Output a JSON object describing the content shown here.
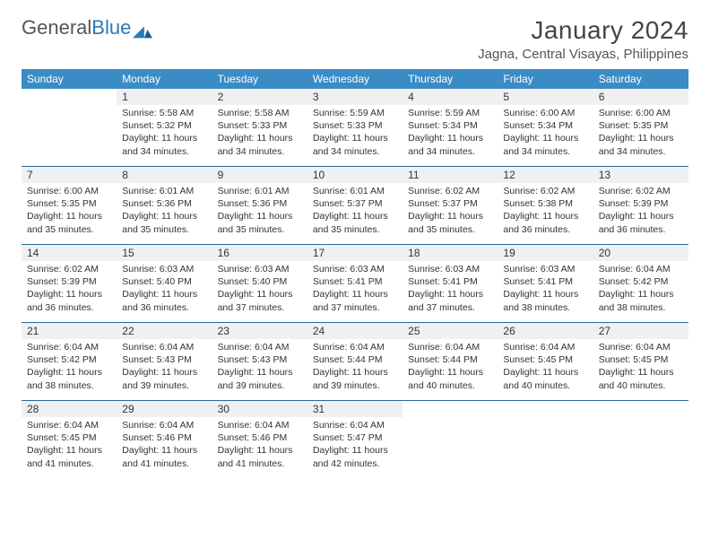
{
  "logo": {
    "text1": "General",
    "text2": "Blue"
  },
  "title": "January 2024",
  "location": "Jagna, Central Visayas, Philippines",
  "colors": {
    "header_bg": "#3b8bc4",
    "week_border": "#2a6a9a",
    "daynum_bg": "#f0f0f0",
    "text": "#333333",
    "logo_gray": "#555555",
    "logo_blue": "#2a7ab8"
  },
  "dow": [
    "Sunday",
    "Monday",
    "Tuesday",
    "Wednesday",
    "Thursday",
    "Friday",
    "Saturday"
  ],
  "start_offset": 1,
  "days": [
    {
      "n": 1,
      "sr": "5:58 AM",
      "ss": "5:32 PM",
      "dl": "11 hours and 34 minutes."
    },
    {
      "n": 2,
      "sr": "5:58 AM",
      "ss": "5:33 PM",
      "dl": "11 hours and 34 minutes."
    },
    {
      "n": 3,
      "sr": "5:59 AM",
      "ss": "5:33 PM",
      "dl": "11 hours and 34 minutes."
    },
    {
      "n": 4,
      "sr": "5:59 AM",
      "ss": "5:34 PM",
      "dl": "11 hours and 34 minutes."
    },
    {
      "n": 5,
      "sr": "6:00 AM",
      "ss": "5:34 PM",
      "dl": "11 hours and 34 minutes."
    },
    {
      "n": 6,
      "sr": "6:00 AM",
      "ss": "5:35 PM",
      "dl": "11 hours and 34 minutes."
    },
    {
      "n": 7,
      "sr": "6:00 AM",
      "ss": "5:35 PM",
      "dl": "11 hours and 35 minutes."
    },
    {
      "n": 8,
      "sr": "6:01 AM",
      "ss": "5:36 PM",
      "dl": "11 hours and 35 minutes."
    },
    {
      "n": 9,
      "sr": "6:01 AM",
      "ss": "5:36 PM",
      "dl": "11 hours and 35 minutes."
    },
    {
      "n": 10,
      "sr": "6:01 AM",
      "ss": "5:37 PM",
      "dl": "11 hours and 35 minutes."
    },
    {
      "n": 11,
      "sr": "6:02 AM",
      "ss": "5:37 PM",
      "dl": "11 hours and 35 minutes."
    },
    {
      "n": 12,
      "sr": "6:02 AM",
      "ss": "5:38 PM",
      "dl": "11 hours and 36 minutes."
    },
    {
      "n": 13,
      "sr": "6:02 AM",
      "ss": "5:39 PM",
      "dl": "11 hours and 36 minutes."
    },
    {
      "n": 14,
      "sr": "6:02 AM",
      "ss": "5:39 PM",
      "dl": "11 hours and 36 minutes."
    },
    {
      "n": 15,
      "sr": "6:03 AM",
      "ss": "5:40 PM",
      "dl": "11 hours and 36 minutes."
    },
    {
      "n": 16,
      "sr": "6:03 AM",
      "ss": "5:40 PM",
      "dl": "11 hours and 37 minutes."
    },
    {
      "n": 17,
      "sr": "6:03 AM",
      "ss": "5:41 PM",
      "dl": "11 hours and 37 minutes."
    },
    {
      "n": 18,
      "sr": "6:03 AM",
      "ss": "5:41 PM",
      "dl": "11 hours and 37 minutes."
    },
    {
      "n": 19,
      "sr": "6:03 AM",
      "ss": "5:41 PM",
      "dl": "11 hours and 38 minutes."
    },
    {
      "n": 20,
      "sr": "6:04 AM",
      "ss": "5:42 PM",
      "dl": "11 hours and 38 minutes."
    },
    {
      "n": 21,
      "sr": "6:04 AM",
      "ss": "5:42 PM",
      "dl": "11 hours and 38 minutes."
    },
    {
      "n": 22,
      "sr": "6:04 AM",
      "ss": "5:43 PM",
      "dl": "11 hours and 39 minutes."
    },
    {
      "n": 23,
      "sr": "6:04 AM",
      "ss": "5:43 PM",
      "dl": "11 hours and 39 minutes."
    },
    {
      "n": 24,
      "sr": "6:04 AM",
      "ss": "5:44 PM",
      "dl": "11 hours and 39 minutes."
    },
    {
      "n": 25,
      "sr": "6:04 AM",
      "ss": "5:44 PM",
      "dl": "11 hours and 40 minutes."
    },
    {
      "n": 26,
      "sr": "6:04 AM",
      "ss": "5:45 PM",
      "dl": "11 hours and 40 minutes."
    },
    {
      "n": 27,
      "sr": "6:04 AM",
      "ss": "5:45 PM",
      "dl": "11 hours and 40 minutes."
    },
    {
      "n": 28,
      "sr": "6:04 AM",
      "ss": "5:45 PM",
      "dl": "11 hours and 41 minutes."
    },
    {
      "n": 29,
      "sr": "6:04 AM",
      "ss": "5:46 PM",
      "dl": "11 hours and 41 minutes."
    },
    {
      "n": 30,
      "sr": "6:04 AM",
      "ss": "5:46 PM",
      "dl": "11 hours and 41 minutes."
    },
    {
      "n": 31,
      "sr": "6:04 AM",
      "ss": "5:47 PM",
      "dl": "11 hours and 42 minutes."
    }
  ],
  "labels": {
    "sunrise": "Sunrise:",
    "sunset": "Sunset:",
    "daylight": "Daylight:"
  }
}
